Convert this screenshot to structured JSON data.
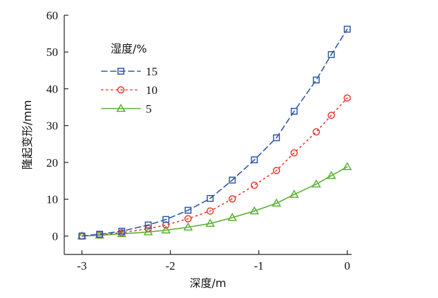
{
  "chart_data": {
    "type": "line",
    "xlabel": "深度/m",
    "ylabel": "隆起变形/mm",
    "xlim": [
      -3.2,
      0.05
    ],
    "ylim": [
      -5,
      60
    ],
    "xticks": [
      -3,
      -2,
      -1,
      0
    ],
    "xtick_labels": [
      "-3",
      "-2",
      "-1",
      "0"
    ],
    "yticks": [
      0,
      10,
      20,
      30,
      40,
      50,
      60
    ],
    "ytick_labels": [
      "0",
      "10",
      "20",
      "30",
      "40",
      "50",
      "60"
    ],
    "legend": {
      "title": "湿度/%",
      "placement": "upper-left inside"
    },
    "x": [
      -3.0,
      -2.8,
      -2.55,
      -2.25,
      -2.05,
      -1.8,
      -1.55,
      -1.3,
      -1.05,
      -0.8,
      -0.6,
      -0.35,
      -0.18,
      0.0
    ],
    "series": [
      {
        "name": "15",
        "color": "#2f56a6",
        "linestyle": "dashed",
        "marker": "square",
        "values": [
          0.0,
          0.5,
          1.3,
          3.0,
          4.5,
          7.0,
          10.2,
          15.2,
          20.7,
          26.7,
          33.9,
          42.4,
          49.3,
          56.2
        ]
      },
      {
        "name": "10",
        "color": "#e8372c",
        "linestyle": "dotted",
        "marker": "circle",
        "values": [
          0.0,
          0.4,
          0.9,
          2.0,
          3.0,
          4.7,
          6.8,
          10.1,
          13.8,
          17.8,
          22.6,
          28.3,
          32.8,
          37.5
        ]
      },
      {
        "name": "5",
        "color": "#5ab034",
        "linestyle": "solid",
        "marker": "triangle",
        "values": [
          0.0,
          0.2,
          0.6,
          1.1,
          1.6,
          2.4,
          3.4,
          5.0,
          6.8,
          8.9,
          11.3,
          14.1,
          16.4,
          18.8
        ]
      }
    ]
  }
}
